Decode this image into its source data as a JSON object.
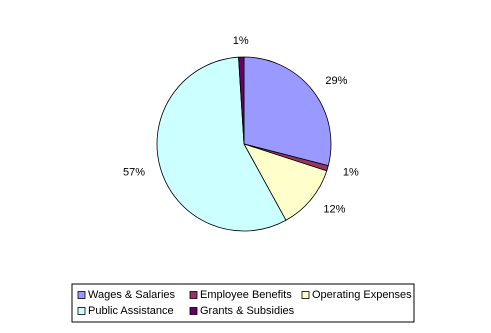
{
  "chart_data": {
    "type": "pie",
    "categories": [
      "Wages & Salaries",
      "Employee Benefits",
      "Operating Expenses",
      "Public Assistance",
      "Grants & Subsidies"
    ],
    "values": [
      29,
      1,
      12,
      57,
      1
    ],
    "value_labels": [
      "29%",
      "1%",
      "12%",
      "57%",
      "1%"
    ],
    "colors": [
      "#9999ff",
      "#993366",
      "#ffffcc",
      "#ccffff",
      "#660066"
    ],
    "legend": "bottom"
  }
}
